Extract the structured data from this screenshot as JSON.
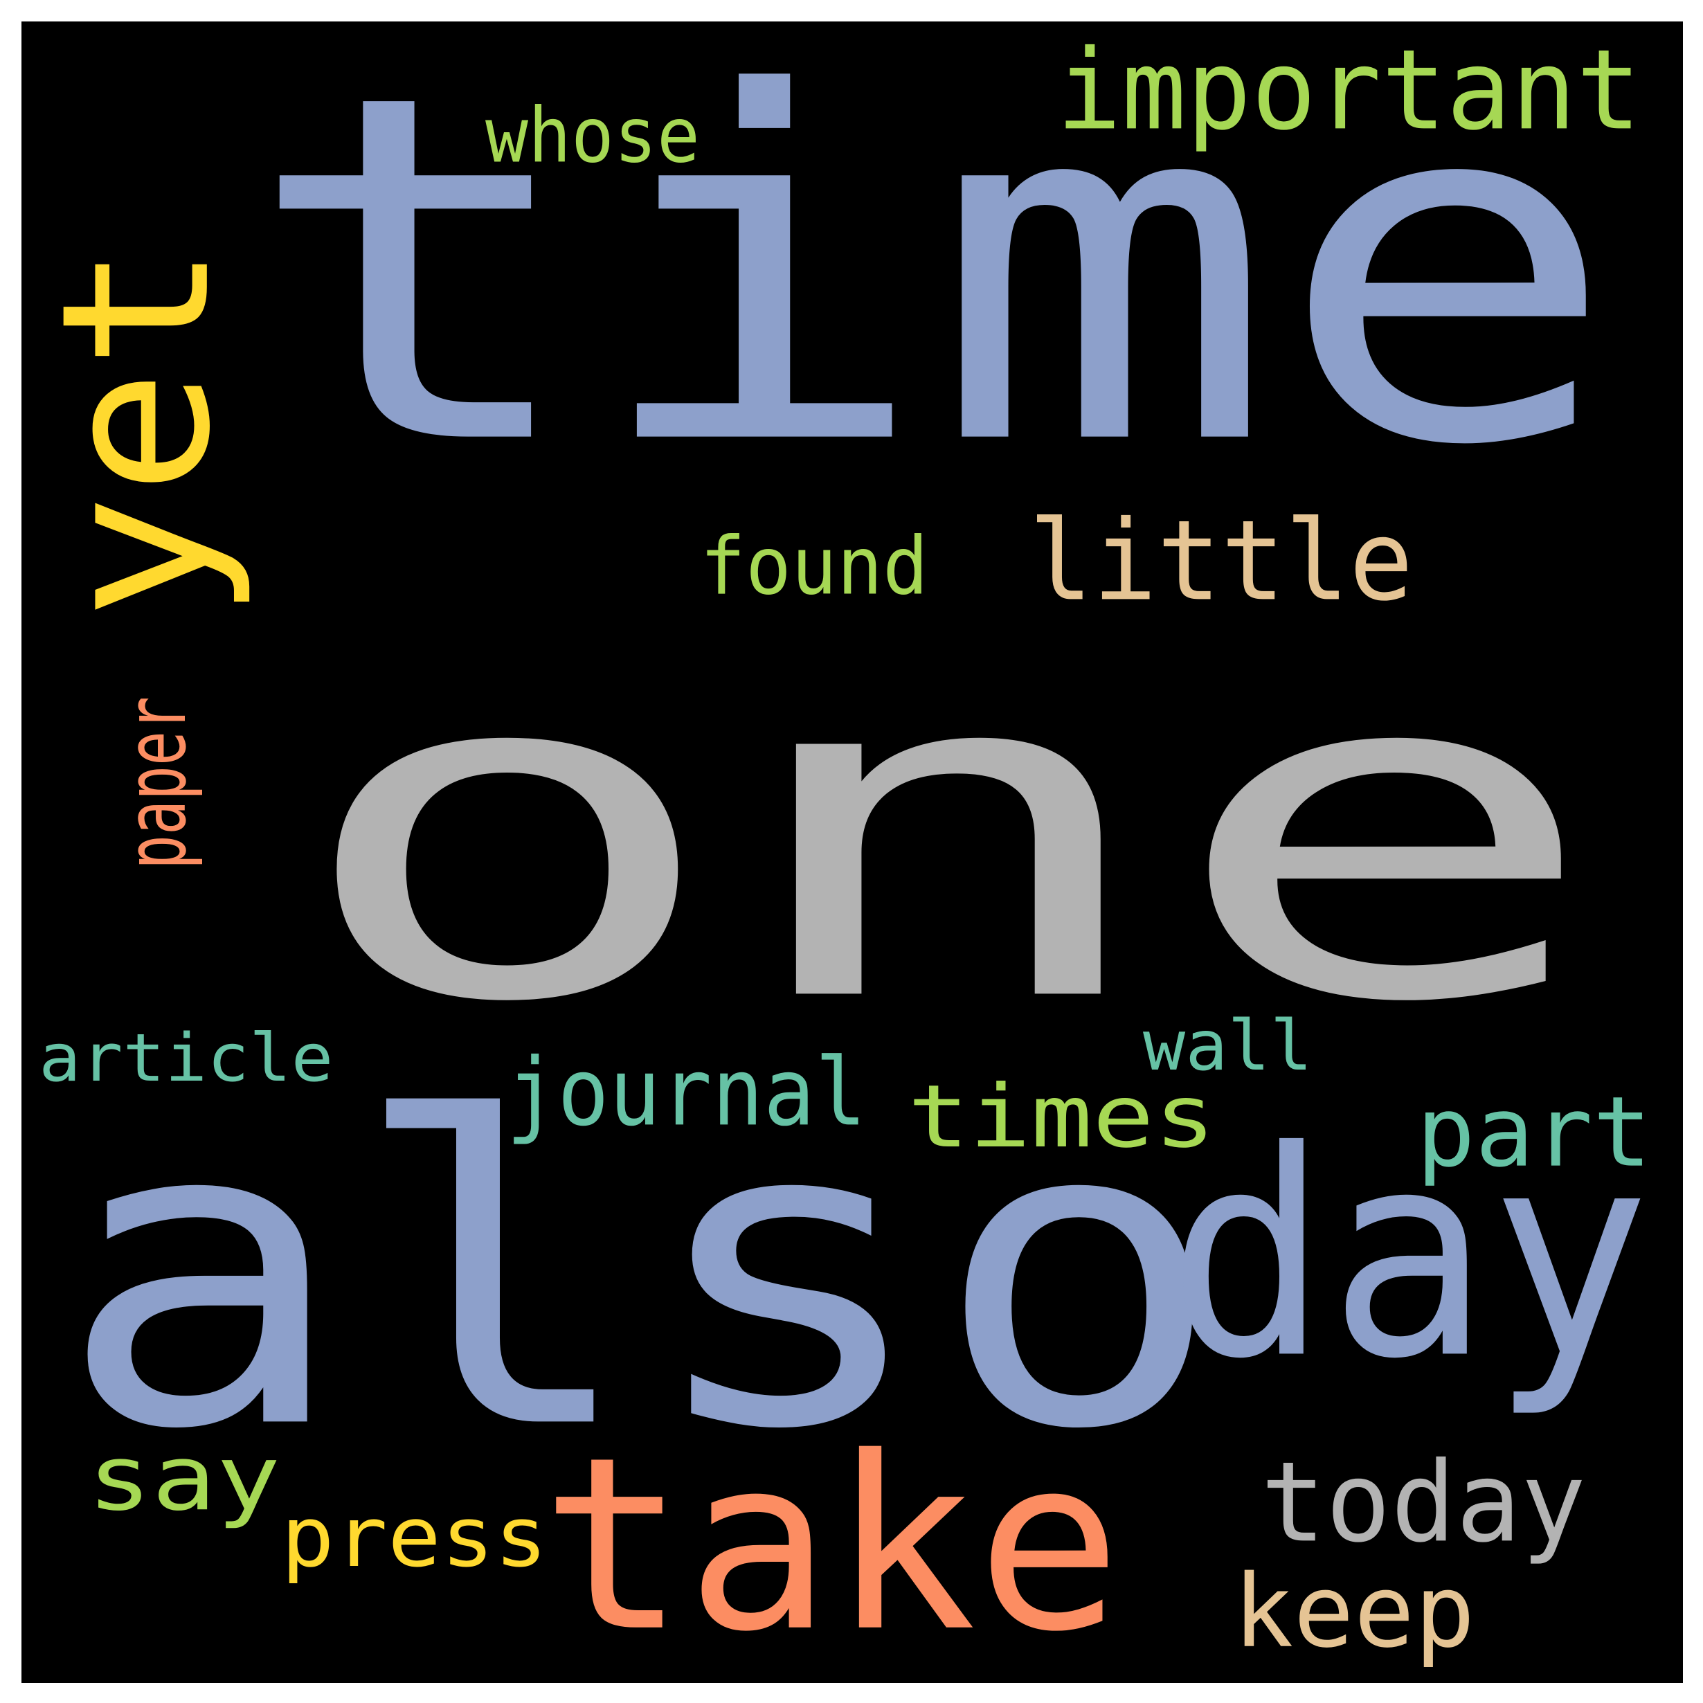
{
  "cloud": {
    "background": "#000000",
    "frame": "#ffffff",
    "palette": {
      "blue": "#8da0cb",
      "gray": "#b3b3b3",
      "yellow": "#ffd92f",
      "lightgreen": "#a6d854",
      "tan": "#e5c494",
      "salmon": "#fc8d62",
      "teal": "#66c2a5"
    },
    "words": [
      {
        "text": "time",
        "color": "#8da0cb",
        "rotated": false
      },
      {
        "text": "one",
        "color": "#b3b3b3",
        "rotated": false
      },
      {
        "text": "also",
        "color": "#8da0cb",
        "rotated": false
      },
      {
        "text": "day",
        "color": "#8da0cb",
        "rotated": false
      },
      {
        "text": "take",
        "color": "#fc8d62",
        "rotated": false
      },
      {
        "text": "yet",
        "color": "#ffd92f",
        "rotated": true
      },
      {
        "text": "important",
        "color": "#a6d854",
        "rotated": false
      },
      {
        "text": "little",
        "color": "#e5c494",
        "rotated": false
      },
      {
        "text": "found",
        "color": "#a6d854",
        "rotated": false
      },
      {
        "text": "whose",
        "color": "#a6d854",
        "rotated": false
      },
      {
        "text": "paper",
        "color": "#fc8d62",
        "rotated": true
      },
      {
        "text": "article",
        "color": "#66c2a5",
        "rotated": false
      },
      {
        "text": "journal",
        "color": "#66c2a5",
        "rotated": false
      },
      {
        "text": "times",
        "color": "#a6d854",
        "rotated": false
      },
      {
        "text": "wall",
        "color": "#66c2a5",
        "rotated": false
      },
      {
        "text": "part",
        "color": "#66c2a5",
        "rotated": false
      },
      {
        "text": "say",
        "color": "#a6d854",
        "rotated": false
      },
      {
        "text": "press",
        "color": "#ffd92f",
        "rotated": false
      },
      {
        "text": "today",
        "color": "#b3b3b3",
        "rotated": false
      },
      {
        "text": "keep",
        "color": "#e5c494",
        "rotated": false
      }
    ]
  }
}
